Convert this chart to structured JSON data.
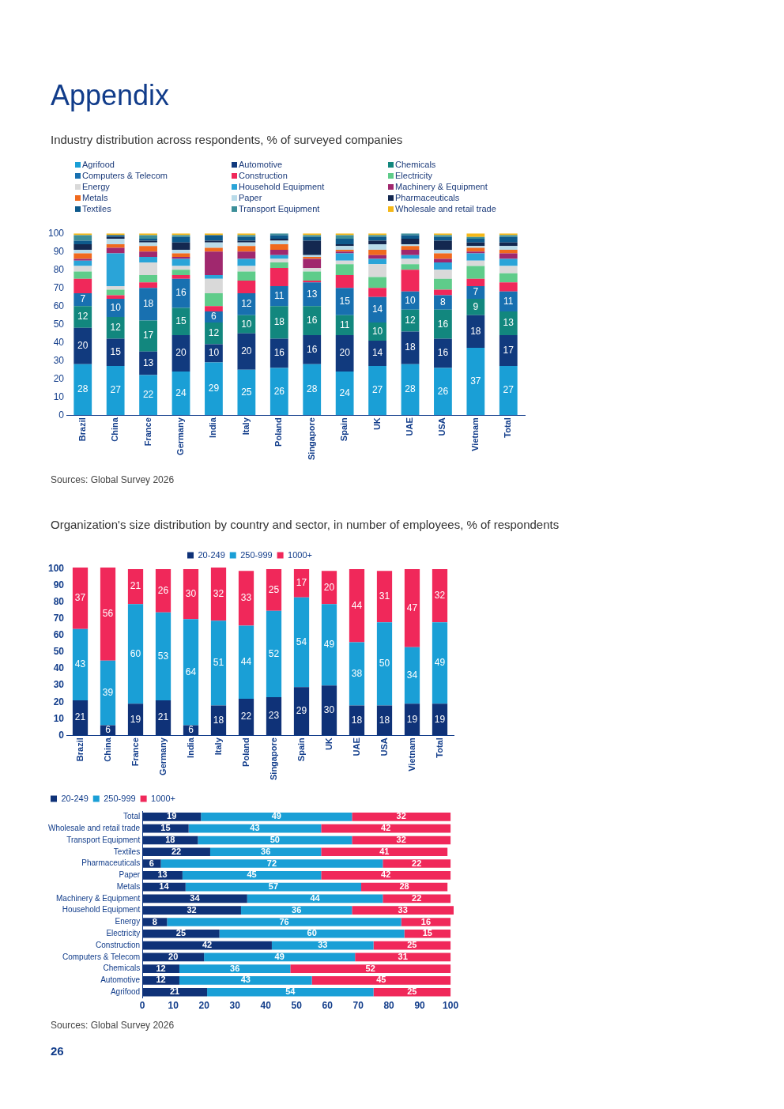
{
  "chart_data": [
    {
      "type": "bar",
      "title": "Appendix",
      "subtitle": "Industry distribution across respondents, % of surveyed companies",
      "stacked": true,
      "grid": false,
      "legend": "top",
      "ylim": [
        0,
        100
      ],
      "yticks": [
        0,
        10,
        20,
        30,
        40,
        50,
        60,
        70,
        80,
        90,
        100
      ],
      "categories": [
        "Brazil",
        "China",
        "France",
        "Germany",
        "India",
        "Italy",
        "Poland",
        "Singapore",
        "Spain",
        "UK",
        "UAE",
        "USA",
        "Vietnam",
        "Total"
      ],
      "series": [
        {
          "name": "Agrifood",
          "color": "#1a9fd6",
          "values": [
            28,
            27,
            22,
            24,
            29,
            25,
            26,
            28,
            24,
            27,
            28,
            26,
            37,
            27
          ],
          "value_labels": [
            "28",
            "27",
            "22",
            "24",
            "29",
            "25",
            "26",
            "28",
            "24",
            "27",
            "28",
            "26",
            "37",
            "27"
          ]
        },
        {
          "name": "Automotive",
          "color": "#113a7e",
          "values": [
            20,
            15,
            13,
            20,
            10,
            20,
            16,
            16,
            20,
            14,
            18,
            16,
            18,
            17
          ],
          "value_labels": [
            "20",
            "15",
            "13",
            "20",
            "10",
            "20",
            "16",
            "16",
            "20",
            "14",
            "18",
            "16",
            "18",
            "17"
          ]
        },
        {
          "name": "Chemicals",
          "color": "#12877e",
          "values": [
            12,
            12,
            17,
            15,
            12,
            10,
            18,
            16,
            11,
            10,
            12,
            16,
            9,
            13
          ],
          "value_labels": [
            "12",
            "12",
            "17",
            "15",
            "12",
            "10",
            "18",
            "16",
            "11",
            "10",
            "12",
            "16",
            "9",
            "13"
          ]
        },
        {
          "name": "Computers & Telecom",
          "color": "#1870b0",
          "values": [
            7,
            10,
            18,
            16,
            6,
            12,
            11,
            13,
            15,
            14,
            10,
            8,
            7,
            11
          ],
          "value_labels": [
            "7",
            "10",
            "18",
            "16",
            "6",
            "12",
            "11",
            "13",
            "15",
            "14",
            "10",
            "8",
            "7",
            "11"
          ]
        },
        {
          "name": "Construction",
          "color": "#f0285a",
          "values": [
            8,
            2,
            3,
            2,
            3,
            7,
            10,
            1,
            7,
            5,
            12,
            3,
            4,
            5
          ]
        },
        {
          "name": "Electricity",
          "color": "#5fcc8a",
          "values": [
            4,
            3,
            4,
            3,
            7,
            5,
            3,
            5,
            6,
            6,
            3,
            6,
            7,
            5
          ]
        },
        {
          "name": "Energy",
          "color": "#d9d9d9",
          "values": [
            3,
            2,
            7,
            2,
            8,
            3,
            2,
            2,
            2,
            7,
            3,
            5,
            3,
            4
          ]
        },
        {
          "name": "Household Equipment",
          "color": "#2aa4d8",
          "values": [
            3,
            18,
            3,
            4,
            2,
            4,
            2,
            0,
            4,
            3,
            2,
            4,
            4,
            4
          ]
        },
        {
          "name": "Machinery & Equipment",
          "color": "#a0286e",
          "values": [
            1,
            3,
            3,
            1,
            13,
            4,
            3,
            5,
            1,
            2,
            3,
            2,
            1,
            3
          ]
        },
        {
          "name": "Metals",
          "color": "#f06a1e",
          "values": [
            3,
            2,
            3,
            2,
            2,
            3,
            3,
            1,
            1,
            3,
            2,
            3,
            2,
            2
          ]
        },
        {
          "name": "Paper",
          "color": "#b9dbe9",
          "values": [
            2,
            3,
            2,
            2,
            3,
            2,
            2,
            1,
            2,
            3,
            1,
            2,
            1,
            2
          ]
        },
        {
          "name": "Pharmaceuticals",
          "color": "#142850",
          "values": [
            3,
            1,
            1,
            4,
            1,
            1,
            1,
            8,
            1,
            2,
            3,
            5,
            2,
            2
          ]
        },
        {
          "name": "Textiles",
          "color": "#0e5a8c",
          "values": [
            2,
            1,
            1,
            3,
            3,
            2,
            2,
            2,
            3,
            2,
            2,
            2,
            2,
            3
          ]
        },
        {
          "name": "Transport Equipment",
          "color": "#3d8f99",
          "values": [
            3,
            0,
            2,
            1,
            0,
            1,
            1,
            1,
            2,
            1,
            1,
            1,
            1,
            1
          ]
        },
        {
          "name": "Wholesale and retail trade",
          "color": "#f5b818",
          "values": [
            1,
            1,
            1,
            1,
            1,
            1,
            0,
            1,
            1,
            1,
            0,
            1,
            2,
            1
          ]
        }
      ],
      "annotations": [
        "Sources: Global Survey 2026"
      ]
    },
    {
      "type": "bar",
      "title": "Organization's size distribution by country and sector, in number of employees, % of respondents",
      "stacked": true,
      "grid": false,
      "legend": "top",
      "data_labels": true,
      "ylim": [
        0,
        101
      ],
      "yticks": [
        0,
        10,
        20,
        30,
        40,
        50,
        60,
        70,
        80,
        90,
        100
      ],
      "categories": [
        "Brazil",
        "China",
        "France",
        "Germany",
        "India",
        "Italy",
        "Poland",
        "Singapore",
        "Spain",
        "UK",
        "UAE",
        "USA",
        "Vietnam",
        "Total"
      ],
      "series": [
        {
          "name": "20-249",
          "color": "#0f3278",
          "values": [
            21,
            6,
            19,
            21,
            6,
            18,
            22,
            23,
            29,
            30,
            18,
            18,
            19,
            19
          ]
        },
        {
          "name": "250-999",
          "color": "#1a9fd6",
          "values": [
            43,
            39,
            60,
            53,
            64,
            51,
            44,
            52,
            54,
            49,
            38,
            50,
            34,
            49
          ]
        },
        {
          "name": "1000+",
          "color": "#f0285a",
          "values": [
            37,
            56,
            21,
            26,
            30,
            32,
            33,
            25,
            17,
            20,
            44,
            31,
            47,
            32
          ]
        }
      ]
    },
    {
      "type": "bar",
      "orientation": "horizontal",
      "stacked": true,
      "grid": false,
      "legend": "top left",
      "data_labels": true,
      "xlim": [
        0,
        101
      ],
      "xticks": [
        0,
        10,
        20,
        30,
        40,
        50,
        60,
        70,
        80,
        90,
        100
      ],
      "categories": [
        "Total",
        "Wholesale and retail trade",
        "Transport Equipment",
        "Textiles",
        "Pharmaceuticals",
        "Paper",
        "Metals",
        "Machinery & Equipment",
        "Household Equipment",
        "Energy",
        "Electricity",
        "Construction",
        "Computers & Telecom",
        "Chemicals",
        "Automotive",
        "Agrifood"
      ],
      "series": [
        {
          "name": "20-249",
          "color": "#0f3278",
          "values": [
            19,
            15,
            18,
            22,
            6,
            13,
            14,
            34,
            32,
            8,
            25,
            42,
            20,
            12,
            12,
            21
          ]
        },
        {
          "name": "250-999",
          "color": "#1a9fd6",
          "values": [
            49,
            43,
            50,
            36,
            72,
            45,
            57,
            44,
            36,
            76,
            60,
            33,
            49,
            36,
            43,
            54
          ]
        },
        {
          "name": "1000+",
          "color": "#f0285a",
          "values": [
            32,
            42,
            32,
            41,
            22,
            42,
            28,
            22,
            33,
            16,
            15,
            25,
            31,
            52,
            45,
            25
          ]
        }
      ],
      "annotations": [
        "Sources: Global Survey 2026",
        "26"
      ]
    }
  ]
}
